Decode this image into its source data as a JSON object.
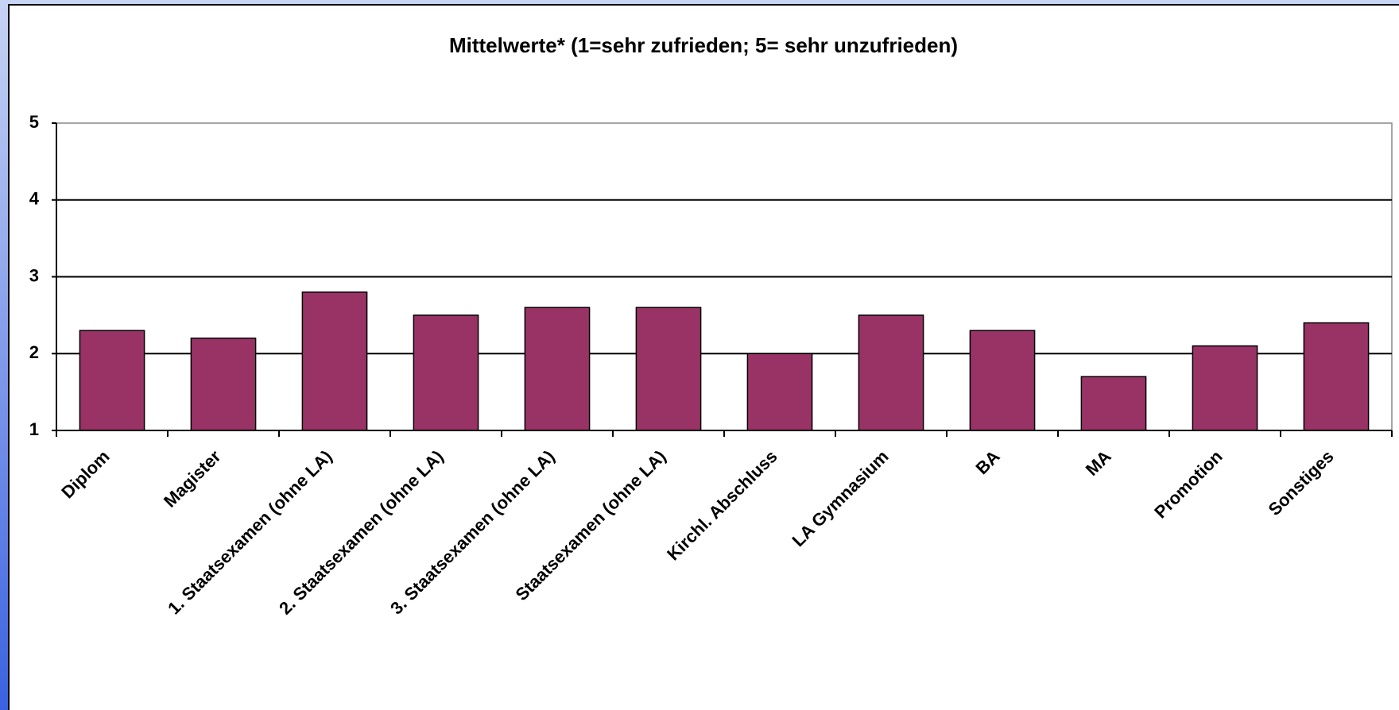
{
  "chart_data": {
    "type": "bar",
    "title": "Mittelwerte* (1=sehr zufrieden; 5= sehr unzufrieden)",
    "categories": [
      "Diplom",
      "Magister",
      "1. Staatsexamen (ohne LA)",
      "2. Staatsexamen (ohne LA)",
      "3. Staatsexamen (ohne LA)",
      "Staatsexamen (ohne LA)",
      "Kirchl. Abschluss",
      "LA Gymnasium",
      "BA",
      "MA",
      "Promotion",
      "Sonstiges"
    ],
    "values": [
      2.3,
      2.2,
      2.8,
      2.5,
      2.6,
      2.6,
      2.0,
      2.5,
      2.3,
      1.7,
      2.1,
      2.4
    ],
    "color": "#993366",
    "ylim": [
      1,
      5
    ],
    "yticks": [
      1,
      2,
      3,
      4,
      5
    ],
    "grid": true
  }
}
